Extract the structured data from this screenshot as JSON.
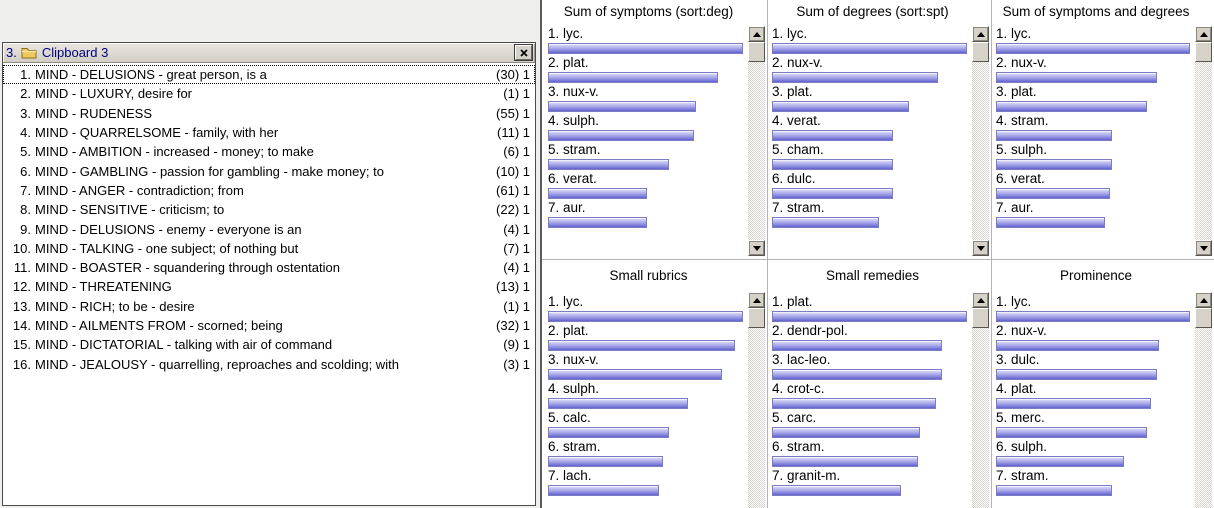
{
  "window": {
    "prefix": "3.",
    "title": "Clipboard 3"
  },
  "clipboard": {
    "items": [
      {
        "num": "1.",
        "text": "MIND - DELUSIONS - great person, is a",
        "count": "(30) 1"
      },
      {
        "num": "2.",
        "text": "MIND - LUXURY, desire for",
        "count": "(1) 1"
      },
      {
        "num": "3.",
        "text": "MIND - RUDENESS",
        "count": "(55) 1"
      },
      {
        "num": "4.",
        "text": "MIND - QUARRELSOME - family, with her",
        "count": "(11) 1"
      },
      {
        "num": "5.",
        "text": "MIND - AMBITION - increased - money; to make",
        "count": "(6) 1"
      },
      {
        "num": "6.",
        "text": "MIND - GAMBLING - passion for gambling - make money; to",
        "count": "(10) 1"
      },
      {
        "num": "7.",
        "text": "MIND - ANGER - contradiction; from",
        "count": "(61) 1"
      },
      {
        "num": "8.",
        "text": "MIND - SENSITIVE - criticism; to",
        "count": "(22) 1"
      },
      {
        "num": "9.",
        "text": "MIND - DELUSIONS - enemy - everyone is an",
        "count": "(4) 1"
      },
      {
        "num": "10.",
        "text": "MIND - TALKING - one subject; of nothing but",
        "count": "(7) 1"
      },
      {
        "num": "11.",
        "text": "MIND - BOASTER - squandering through ostentation",
        "count": "(4) 1"
      },
      {
        "num": "12.",
        "text": "MIND - THREATENING",
        "count": "(13) 1"
      },
      {
        "num": "13.",
        "text": "MIND - RICH; to be - desire",
        "count": "(1) 1"
      },
      {
        "num": "14.",
        "text": "MIND - AILMENTS FROM - scorned; being",
        "count": "(32) 1"
      },
      {
        "num": "15.",
        "text": "MIND - DICTATORIAL - talking with air of command",
        "count": "(9) 1"
      },
      {
        "num": "16.",
        "text": "MIND - JEALOUSY - quarrelling, reproaches and scolding; with",
        "count": "(3) 1"
      }
    ]
  },
  "chart_data": [
    {
      "type": "bar",
      "title": "Sum of symptoms (sort:deg)",
      "ylim": [
        0,
        100
      ],
      "items": [
        {
          "label": "1. lyc.",
          "remedy": "lyc.",
          "value": 100
        },
        {
          "label": "2. plat.",
          "remedy": "plat.",
          "value": 87
        },
        {
          "label": "3. nux-v.",
          "remedy": "nux-v.",
          "value": 76
        },
        {
          "label": "4. sulph.",
          "remedy": "sulph.",
          "value": 75
        },
        {
          "label": "5. stram.",
          "remedy": "stram.",
          "value": 62
        },
        {
          "label": "6. verat.",
          "remedy": "verat.",
          "value": 51
        },
        {
          "label": "7. aur.",
          "remedy": "aur.",
          "value": 51
        }
      ]
    },
    {
      "type": "bar",
      "title": "Sum of degrees (sort:spt)",
      "ylim": [
        0,
        100
      ],
      "items": [
        {
          "label": "1. lyc.",
          "remedy": "lyc.",
          "value": 100
        },
        {
          "label": "2. nux-v.",
          "remedy": "nux-v.",
          "value": 85
        },
        {
          "label": "3. plat.",
          "remedy": "plat.",
          "value": 70
        },
        {
          "label": "4. verat.",
          "remedy": "verat.",
          "value": 62
        },
        {
          "label": "5. cham.",
          "remedy": "cham.",
          "value": 62
        },
        {
          "label": "6. dulc.",
          "remedy": "dulc.",
          "value": 62
        },
        {
          "label": "7. stram.",
          "remedy": "stram.",
          "value": 55
        }
      ]
    },
    {
      "type": "bar",
      "title": "Sum of symptoms and degrees",
      "ylim": [
        0,
        100
      ],
      "items": [
        {
          "label": "1. lyc.",
          "remedy": "lyc.",
          "value": 100
        },
        {
          "label": "2. nux-v.",
          "remedy": "nux-v.",
          "value": 83
        },
        {
          "label": "3. plat.",
          "remedy": "plat.",
          "value": 78
        },
        {
          "label": "4. stram.",
          "remedy": "stram.",
          "value": 60
        },
        {
          "label": "5. sulph.",
          "remedy": "sulph.",
          "value": 60
        },
        {
          "label": "6. verat.",
          "remedy": "verat.",
          "value": 59
        },
        {
          "label": "7. aur.",
          "remedy": "aur.",
          "value": 56
        }
      ]
    },
    {
      "type": "bar",
      "title": "Small rubrics",
      "ylim": [
        0,
        100
      ],
      "items": [
        {
          "label": "1. lyc.",
          "remedy": "lyc.",
          "value": 100
        },
        {
          "label": "2. plat.",
          "remedy": "plat.",
          "value": 96
        },
        {
          "label": "3. nux-v.",
          "remedy": "nux-v.",
          "value": 89
        },
        {
          "label": "4. sulph.",
          "remedy": "sulph.",
          "value": 72
        },
        {
          "label": "5. calc.",
          "remedy": "calc.",
          "value": 62
        },
        {
          "label": "6. stram.",
          "remedy": "stram.",
          "value": 59
        },
        {
          "label": "7. lach.",
          "remedy": "lach.",
          "value": 57
        }
      ]
    },
    {
      "type": "bar",
      "title": "Small remedies",
      "ylim": [
        0,
        100
      ],
      "items": [
        {
          "label": "1. plat.",
          "remedy": "plat.",
          "value": 100
        },
        {
          "label": "2. dendr-pol.",
          "remedy": "dendr-pol.",
          "value": 87
        },
        {
          "label": "3. lac-leo.",
          "remedy": "lac-leo.",
          "value": 87
        },
        {
          "label": "4. crot-c.",
          "remedy": "crot-c.",
          "value": 84
        },
        {
          "label": "5. carc.",
          "remedy": "carc.",
          "value": 76
        },
        {
          "label": "6. stram.",
          "remedy": "stram.",
          "value": 75
        },
        {
          "label": "7. granit-m.",
          "remedy": "granit-m.",
          "value": 66
        }
      ]
    },
    {
      "type": "bar",
      "title": "Prominence",
      "ylim": [
        0,
        100
      ],
      "items": [
        {
          "label": "1. lyc.",
          "remedy": "lyc.",
          "value": 100
        },
        {
          "label": "2. nux-v.",
          "remedy": "nux-v.",
          "value": 84
        },
        {
          "label": "3. dulc.",
          "remedy": "dulc.",
          "value": 83
        },
        {
          "label": "4. plat.",
          "remedy": "plat.",
          "value": 80
        },
        {
          "label": "5. merc.",
          "remedy": "merc.",
          "value": 78
        },
        {
          "label": "6. sulph.",
          "remedy": "sulph.",
          "value": 66
        },
        {
          "label": "7. stram.",
          "remedy": "stram.",
          "value": 60
        }
      ]
    }
  ],
  "colors": {
    "bar_top": "#e2e2fa",
    "bar_bottom": "#6262d0",
    "title_text": "#000080",
    "titlebar_bg": "#d6d2ca"
  }
}
